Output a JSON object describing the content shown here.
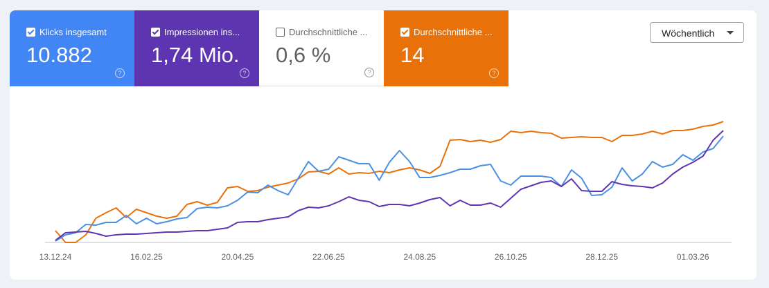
{
  "cards": [
    {
      "label": "Klicks insgesamt",
      "value": "10.882",
      "checked": true,
      "color": "#4285f4"
    },
    {
      "label": "Impressionen ins...",
      "value": "1,74 Mio.",
      "checked": true,
      "color": "#5e35b1"
    },
    {
      "label": "Durchschnittliche ...",
      "value": "0,6 %",
      "checked": false,
      "color": "#ffffff"
    },
    {
      "label": "Durchschnittliche ...",
      "value": "14",
      "checked": true,
      "color": "#e8710a"
    }
  ],
  "dropdown": "Wöchentlich",
  "chart_data": {
    "type": "line",
    "categories": [
      "13.12.24",
      null,
      null,
      null,
      null,
      null,
      null,
      null,
      null,
      "16.02.25",
      null,
      null,
      null,
      null,
      null,
      null,
      null,
      null,
      "20.04.25",
      null,
      null,
      null,
      null,
      null,
      null,
      null,
      null,
      "22.06.25",
      null,
      null,
      null,
      null,
      null,
      null,
      null,
      null,
      "24.08.25",
      null,
      null,
      null,
      null,
      null,
      null,
      null,
      null,
      "26.10.25",
      null,
      null,
      null,
      null,
      null,
      null,
      null,
      null,
      "28.12.25",
      null,
      null,
      null,
      null,
      null,
      null,
      null,
      null,
      "01.03.26",
      null,
      null,
      null
    ],
    "ylim": [
      0,
      100
    ],
    "series": [
      {
        "color": "#e8710a",
        "values": [
          8.5,
          0,
          0,
          5.5,
          17.5,
          21.5,
          25,
          18,
          24,
          21.5,
          19,
          17.5,
          19,
          27.5,
          29.5,
          27,
          29,
          39.5,
          40.5,
          37,
          37.5,
          40,
          41.5,
          43,
          46,
          51,
          51.5,
          49.5,
          54,
          49.5,
          50.5,
          50,
          51.5,
          50.5,
          52.5,
          54,
          52.5,
          50,
          55,
          74,
          74.5,
          73,
          74,
          72.5,
          74.5,
          80.5,
          79.5,
          80.5,
          79.5,
          79,
          75.5,
          76,
          76.5,
          76,
          76,
          73,
          77.5,
          77.5,
          78.5,
          80.5,
          78.5,
          81,
          81,
          82,
          84,
          85,
          87.5
        ]
      },
      {
        "color": "#4a90e2",
        "values": [
          1,
          5.5,
          7,
          13,
          12.5,
          14.5,
          14.5,
          19.5,
          13.5,
          17.5,
          13.5,
          15,
          17,
          18,
          24.5,
          25.5,
          25,
          26.5,
          30.5,
          36.5,
          36,
          41.5,
          37.5,
          34.5,
          46.5,
          58.5,
          51.5,
          53,
          62,
          59.5,
          57,
          57,
          45,
          58,
          66.5,
          58.5,
          47,
          47,
          48.5,
          50.5,
          53,
          53,
          55.5,
          56.5,
          44.5,
          41.5,
          48,
          48,
          48,
          47,
          40.5,
          52.5,
          46.5,
          34,
          34.5,
          40,
          54,
          44.5,
          49.5,
          58.5,
          54.5,
          56.5,
          63.5,
          59.5,
          65.5,
          68,
          77
        ]
      },
      {
        "color": "#5e35b1",
        "values": [
          1.5,
          7,
          7.5,
          8,
          6.5,
          4.5,
          5.5,
          6,
          6,
          6.5,
          7,
          7.5,
          7.5,
          8,
          8.5,
          8.5,
          9.5,
          10.5,
          14.5,
          15,
          15,
          16.5,
          17.5,
          18.5,
          23,
          25.5,
          25,
          26.5,
          29.5,
          33,
          30.5,
          29.5,
          26,
          27.5,
          27.5,
          26.5,
          28.5,
          31,
          32.5,
          26.5,
          30.5,
          27,
          27,
          28.5,
          25.5,
          32,
          38.5,
          41,
          43.5,
          44.5,
          40.5,
          46,
          37.5,
          37,
          37,
          44,
          42,
          41,
          40.5,
          39.5,
          43,
          49.5,
          54.5,
          58,
          62.5,
          74,
          81
        ]
      }
    ]
  }
}
